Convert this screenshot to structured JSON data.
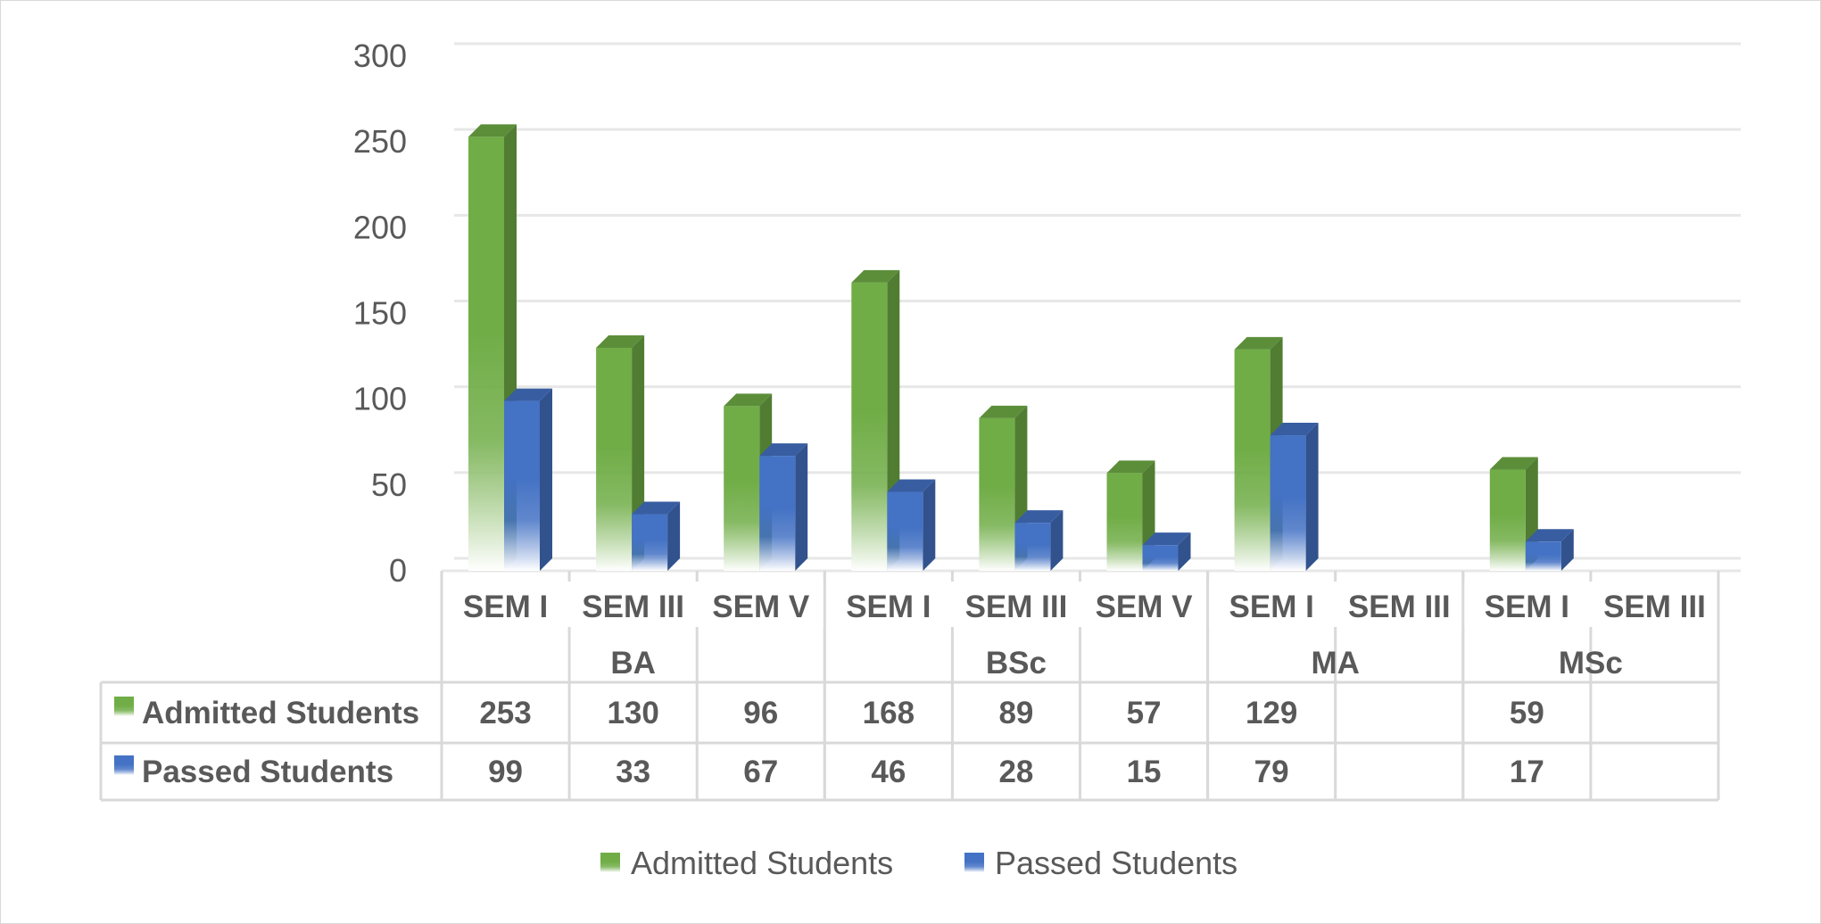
{
  "chart_data": {
    "type": "bar",
    "title": "",
    "xlabel": "",
    "ylabel": "",
    "ylim": [
      0,
      300
    ],
    "yticks": [
      0,
      50,
      100,
      150,
      200,
      250,
      300
    ],
    "grid": true,
    "style": "3d-column-with-data-table",
    "legend_position": "bottom",
    "groups": [
      {
        "name": "BA",
        "categories": [
          "SEM I",
          "SEM III",
          "SEM V"
        ]
      },
      {
        "name": "BSc",
        "categories": [
          "SEM I",
          "SEM III",
          "SEM V"
        ]
      },
      {
        "name": "MA",
        "categories": [
          "SEM I",
          "SEM III"
        ]
      },
      {
        "name": "MSc",
        "categories": [
          "SEM I",
          "SEM III"
        ]
      }
    ],
    "series": [
      {
        "name": "Admitted Students",
        "color": "#70ad47",
        "values": [
          253,
          130,
          96,
          168,
          89,
          57,
          129,
          null,
          59,
          null
        ]
      },
      {
        "name": "Passed Students",
        "color": "#4472c4",
        "values": [
          99,
          33,
          67,
          46,
          28,
          15,
          79,
          null,
          17,
          null
        ]
      }
    ]
  }
}
